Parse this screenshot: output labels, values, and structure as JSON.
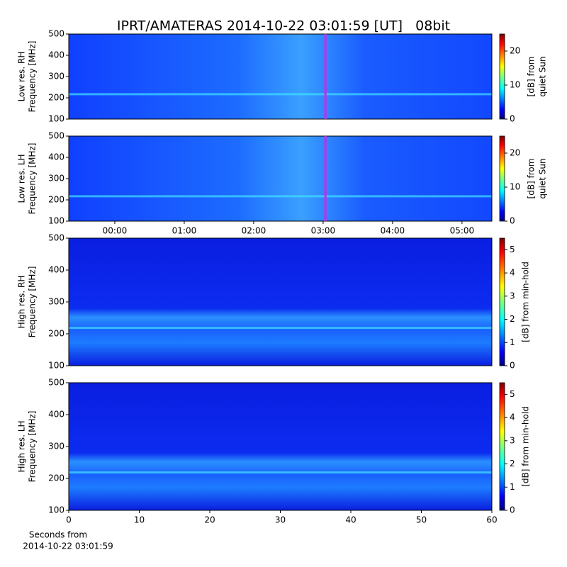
{
  "title": "IPRT/AMATERAS 2014-10-22 03:01:59 [UT]   08bit",
  "chart_data": [
    {
      "type": "heatmap",
      "y_label": [
        "Low res. RH",
        "Frequency [MHz]"
      ],
      "ylim": [
        100,
        500
      ],
      "yticks": [
        100,
        200,
        300,
        400,
        500
      ],
      "xlim": [
        -0.663,
        5.43
      ],
      "xticks": [],
      "marker_x": 3.033,
      "marker_color": "#e020e0",
      "colorbar": {
        "label": [
          "[dB] from",
          "quiet Sun"
        ],
        "lim": [
          0,
          25
        ],
        "ticks": [
          0,
          10,
          20
        ]
      }
    },
    {
      "type": "heatmap",
      "y_label": [
        "Low res. LH",
        "Frequency [MHz]"
      ],
      "ylim": [
        100,
        500
      ],
      "yticks": [
        100,
        200,
        300,
        400,
        500
      ],
      "xlim": [
        -0.663,
        5.43
      ],
      "xticks": [
        {
          "value": 0,
          "label": "00:00"
        },
        {
          "value": 1,
          "label": "01:00"
        },
        {
          "value": 2,
          "label": "02:00"
        },
        {
          "value": 3,
          "label": "03:00"
        },
        {
          "value": 4,
          "label": "04:00"
        },
        {
          "value": 5,
          "label": "05:00"
        }
      ],
      "marker_x": 3.033,
      "marker_color": "#e020e0",
      "colorbar": {
        "label": [
          "[dB] from",
          "quiet Sun"
        ],
        "lim": [
          0,
          25
        ],
        "ticks": [
          0,
          10,
          20
        ]
      }
    },
    {
      "type": "heatmap",
      "y_label": [
        "High res. RH",
        "Frequency [MHz]"
      ],
      "ylim": [
        100,
        500
      ],
      "yticks": [
        100,
        200,
        300,
        400,
        500
      ],
      "xlim": [
        0,
        60
      ],
      "xticks": [],
      "colorbar": {
        "label": [
          "[dB] from min-hold"
        ],
        "lim": [
          0,
          5.5
        ],
        "ticks": [
          0,
          1,
          2,
          3,
          4,
          5
        ]
      }
    },
    {
      "type": "heatmap",
      "y_label": [
        "High res. LH",
        "Frequency [MHz]"
      ],
      "ylim": [
        100,
        500
      ],
      "yticks": [
        100,
        200,
        300,
        400,
        500
      ],
      "xlim": [
        0,
        60
      ],
      "xticks": [
        0,
        10,
        20,
        30,
        40,
        50,
        60
      ],
      "x_label": [
        "Seconds from",
        "2014-10-22 03:01:59"
      ],
      "colorbar": {
        "label": [
          "[dB] from min-hold"
        ],
        "lim": [
          0,
          5.5
        ],
        "ticks": [
          0,
          1,
          2,
          3,
          4,
          5
        ]
      }
    }
  ]
}
